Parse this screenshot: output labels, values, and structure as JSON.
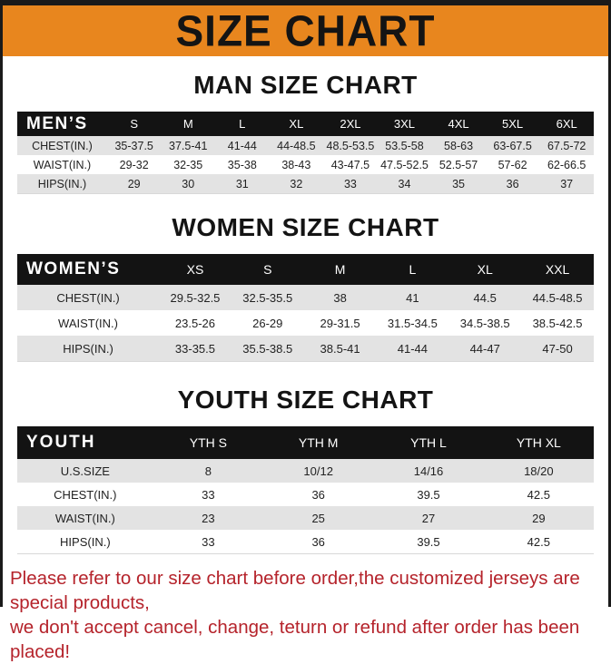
{
  "banner": {
    "title": "SIZE CHART"
  },
  "colors": {
    "banner_orange": "#E8861E",
    "table_header_black": "#131313",
    "row_gray": "#E3E3E3",
    "footer_red": "#B5232B"
  },
  "sections": [
    {
      "heading": "MAN SIZE CHART",
      "table": {
        "header": [
          "MEN’S",
          "S",
          "M",
          "L",
          "XL",
          "2XL",
          "3XL",
          "4XL",
          "5XL",
          "6XL"
        ],
        "rows": [
          [
            "CHEST(IN.)",
            "35-37.5",
            "37.5-41",
            "41-44",
            "44-48.5",
            "48.5-53.5",
            "53.5-58",
            "58-63",
            "63-67.5",
            "67.5-72"
          ],
          [
            "WAIST(IN.)",
            "29-32",
            "32-35",
            "35-38",
            "38-43",
            "43-47.5",
            "47.5-52.5",
            "52.5-57",
            "57-62",
            "62-66.5"
          ],
          [
            "HIPS(IN.)",
            "29",
            "30",
            "31",
            "32",
            "33",
            "34",
            "35",
            "36",
            "37"
          ]
        ]
      }
    },
    {
      "heading": "WOMEN SIZE CHART",
      "table": {
        "header": [
          "WOMEN’S",
          "XS",
          "S",
          "M",
          "L",
          "XL",
          "XXL"
        ],
        "rows": [
          [
            "CHEST(IN.)",
            "29.5-32.5",
            "32.5-35.5",
            "38",
            "41",
            "44.5",
            "44.5-48.5"
          ],
          [
            "WAIST(IN.)",
            "23.5-26",
            "26-29",
            "29-31.5",
            "31.5-34.5",
            "34.5-38.5",
            "38.5-42.5"
          ],
          [
            "HIPS(IN.)",
            "33-35.5",
            "35.5-38.5",
            "38.5-41",
            "41-44",
            "44-47",
            "47-50"
          ]
        ]
      }
    },
    {
      "heading": "YOUTH SIZE CHART",
      "table": {
        "header": [
          "YOUTH",
          "YTH S",
          "YTH M",
          "YTH L",
          "YTH XL"
        ],
        "rows": [
          [
            "U.S.SIZE",
            "8",
            "10/12",
            "14/16",
            "18/20"
          ],
          [
            "CHEST(IN.)",
            "33",
            "36",
            "39.5",
            "42.5"
          ],
          [
            "WAIST(IN.)",
            "23",
            "25",
            "27",
            "29"
          ],
          [
            "HIPS(IN.)",
            "33",
            "36",
            "39.5",
            "42.5"
          ]
        ]
      }
    }
  ],
  "footer": {
    "line1": "Please refer to our size chart before order,the customized jerseys are special products,",
    "line2": "we don't accept cancel, change, teturn or refund after order has been placed!"
  }
}
